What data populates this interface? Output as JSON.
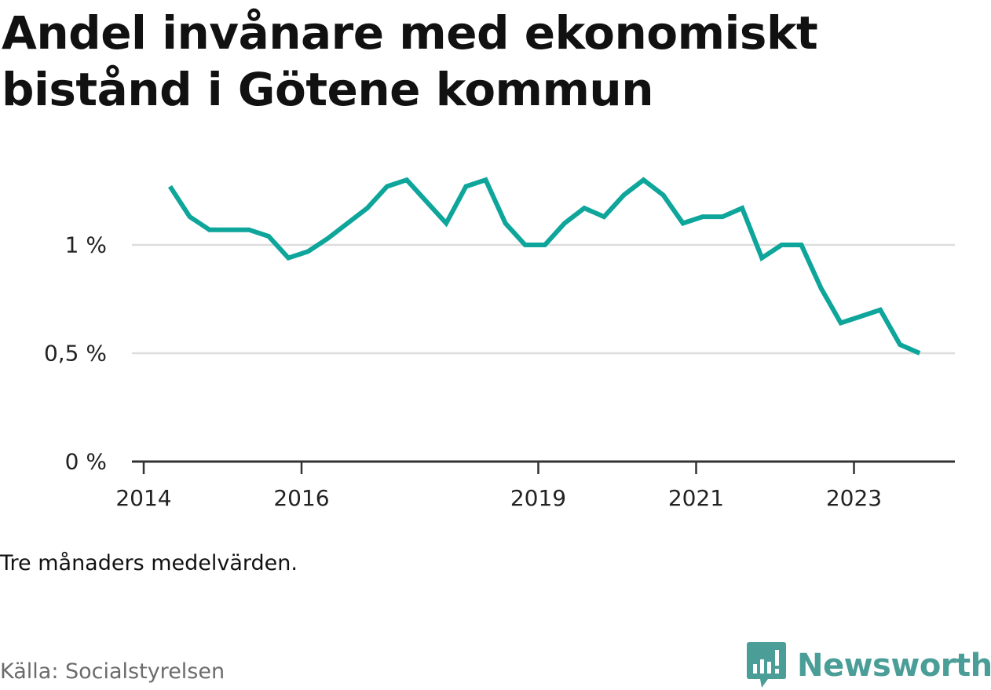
{
  "title": "Andel invånare med ekonomiskt bistånd i Götene kommun",
  "note": "Tre månaders medelvärden.",
  "source": "Källa: Socialstyrelsen",
  "brand": {
    "name": "Newsworthy",
    "icon": "newsworthy-logo-icon",
    "color": "#4a9e97"
  },
  "chart_data": {
    "type": "line",
    "title": "Andel invånare med ekonomiskt bistånd i Götene kommun",
    "xlabel": "",
    "ylabel": "",
    "x_ticks": [
      "2014",
      "2016",
      "2019",
      "2021",
      "2023"
    ],
    "y_ticks": [
      "0 %",
      "0,5 %",
      "1 %"
    ],
    "ylim": [
      0,
      1.4
    ],
    "grid": true,
    "line_color": "#0ea59b",
    "series": [
      {
        "x": [
          "2014-05",
          "2014-08",
          "2014-11",
          "2015-02",
          "2015-05",
          "2015-08",
          "2015-11",
          "2016-02",
          "2016-05",
          "2016-08",
          "2016-11",
          "2017-02",
          "2017-05",
          "2017-08",
          "2017-11",
          "2018-02",
          "2018-05",
          "2018-08",
          "2018-11",
          "2019-02",
          "2019-05",
          "2019-08",
          "2019-11",
          "2020-02",
          "2020-05",
          "2020-08",
          "2020-11",
          "2021-02",
          "2021-05",
          "2021-08",
          "2021-11",
          "2022-02",
          "2022-05",
          "2022-08",
          "2022-11",
          "2023-02",
          "2023-05",
          "2023-08",
          "2023-11"
        ],
        "values": [
          1.27,
          1.13,
          1.07,
          1.07,
          1.07,
          1.04,
          0.94,
          0.97,
          1.03,
          1.1,
          1.17,
          1.27,
          1.3,
          1.2,
          1.1,
          1.27,
          1.3,
          1.1,
          1.0,
          1.0,
          1.1,
          1.17,
          1.13,
          1.23,
          1.3,
          1.23,
          1.1,
          1.13,
          1.13,
          1.17,
          0.94,
          1.0,
          1.0,
          0.8,
          0.64,
          0.67,
          0.7,
          0.54,
          0.5
        ]
      }
    ]
  }
}
